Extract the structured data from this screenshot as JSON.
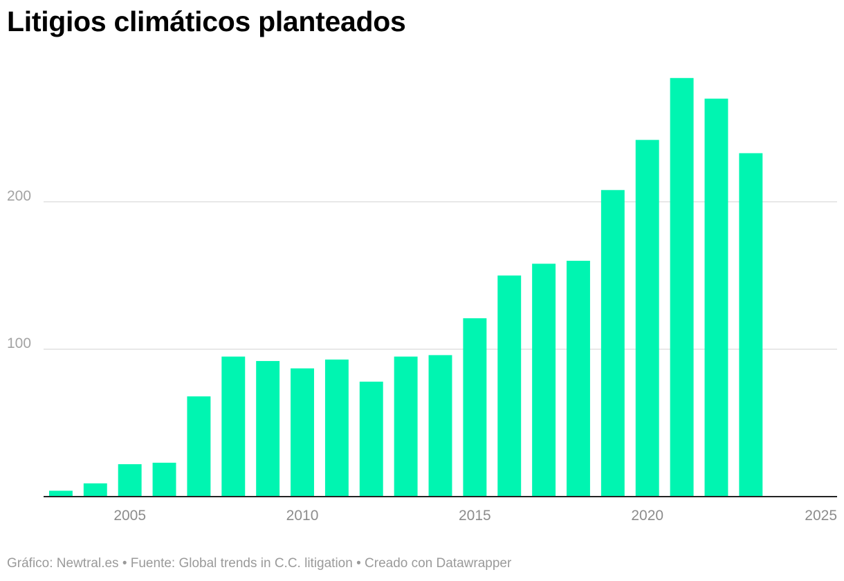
{
  "chart_data": {
    "type": "bar",
    "title": "Litigios climáticos planteados",
    "xlabel": "",
    "ylabel": "",
    "x": [
      2003,
      2004,
      2005,
      2006,
      2007,
      2008,
      2009,
      2010,
      2011,
      2012,
      2013,
      2014,
      2015,
      2016,
      2017,
      2018,
      2019,
      2020,
      2021,
      2022,
      2023
    ],
    "values": [
      4,
      9,
      22,
      23,
      68,
      95,
      92,
      87,
      93,
      78,
      95,
      96,
      121,
      150,
      158,
      160,
      208,
      242,
      284,
      270,
      233
    ],
    "xlim": [
      2002.5,
      2025.5
    ],
    "ylim": [
      0,
      290
    ],
    "x_ticks": [
      "2005",
      "2010",
      "2015",
      "2020",
      "2025"
    ],
    "y_ticks": [
      "100",
      "200"
    ],
    "bar_color": "#00f5b1",
    "grid": true,
    "legend": "none"
  },
  "footer": {
    "text": "Gráfico: Newtral.es • Fuente: Global trends in C.C. litigation • Creado con Datawrapper"
  }
}
